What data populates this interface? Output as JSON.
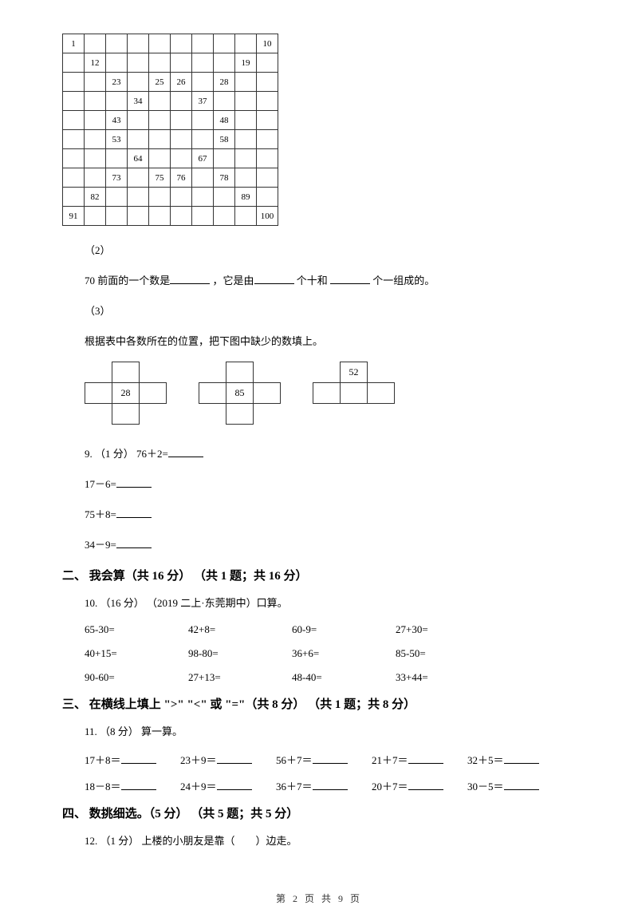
{
  "hundredBoard": [
    [
      "1",
      "",
      "",
      "",
      "",
      "",
      "",
      "",
      "",
      "10"
    ],
    [
      "",
      "12",
      "",
      "",
      "",
      "",
      "",
      "",
      "19",
      ""
    ],
    [
      "",
      "",
      "23",
      "",
      "25",
      "26",
      "",
      "28",
      "",
      ""
    ],
    [
      "",
      "",
      "",
      "34",
      "",
      "",
      "37",
      "",
      "",
      ""
    ],
    [
      "",
      "",
      "43",
      "",
      "",
      "",
      "",
      "48",
      "",
      ""
    ],
    [
      "",
      "",
      "53",
      "",
      "",
      "",
      "",
      "58",
      "",
      ""
    ],
    [
      "",
      "",
      "",
      "64",
      "",
      "",
      "67",
      "",
      "",
      ""
    ],
    [
      "",
      "",
      "73",
      "",
      "75",
      "76",
      "",
      "78",
      "",
      ""
    ],
    [
      "",
      "82",
      "",
      "",
      "",
      "",
      "",
      "",
      "89",
      ""
    ],
    [
      "91",
      "",
      "",
      "",
      "",
      "",
      "",
      "",
      "",
      "100"
    ]
  ],
  "q2label": "（2）",
  "q2text1": "70 前面的一个数是",
  "q2text2": " ，它是由",
  "q2text3": " 个十和 ",
  "q2text4": " 个一组成的。",
  "q3label": "（3）",
  "q3text": "根据表中各数所在的位置，把下图中缺少的数填上。",
  "cross1_val": "28",
  "cross2_val": "85",
  "cross3_val": "52",
  "q9label": "9. （1 分） 76＋2=",
  "q9_2": "17－6=",
  "q9_3": "75＋8=",
  "q9_4": "34－9=",
  "sec2": "二、 我会算（共 16 分） （共 1 题；共 16 分）",
  "q10label": "10. （16 分） （2019 二上·东莞期中）口算。",
  "calc": [
    "65-30=",
    "42+8=",
    "60-9=",
    "27+30=",
    "40+15=",
    "98-80=",
    "36+6=",
    "85-50=",
    "90-60=",
    "27+13=",
    "48-40=",
    "33+44="
  ],
  "sec3": "三、 在横线上填上 \">\" \"<\" 或 \"=\"（共 8 分） （共 1 题；共 8 分）",
  "q11label": "11. （8 分） 算一算。",
  "calc2": [
    "17＋8＝",
    "23＋9＝",
    "56＋7＝",
    "21＋7＝",
    "32＋5＝",
    "18－8＝",
    "24＋9＝",
    "36＋7＝",
    "20＋7＝",
    "30－5＝"
  ],
  "sec4": "四、 数挑细选。（5 分） （共 5 题；共 5 分）",
  "q12label": "12. （1 分） 上楼的小朋友是靠（　　）边走。",
  "footer": "第 2 页 共 9 页"
}
